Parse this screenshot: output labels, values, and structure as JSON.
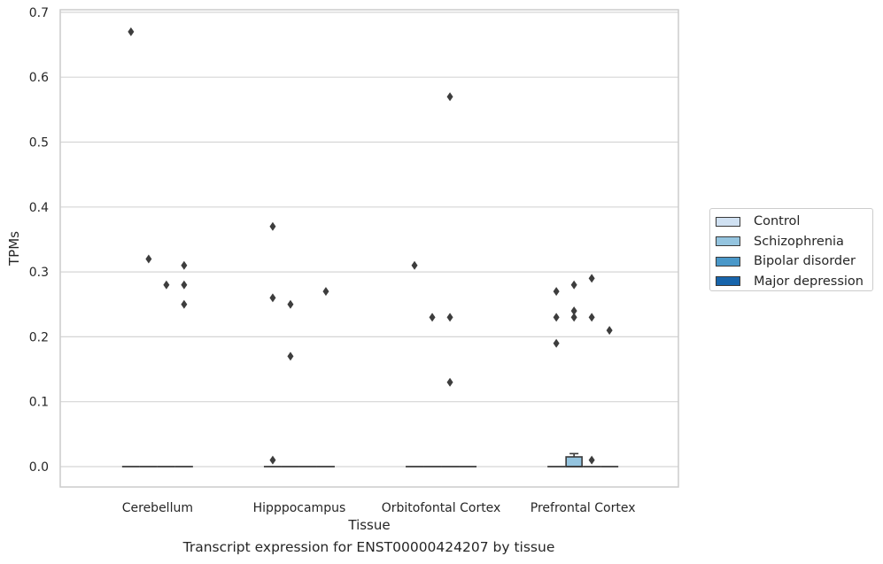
{
  "chart_data": {
    "type": "box",
    "title": "Transcript expression for ENST00000424207 by tissue",
    "xlabel": "Tissue",
    "ylabel": "TPMs",
    "ylim": [
      -0.032,
      0.705
    ],
    "yticks": [
      0.0,
      0.1,
      0.2,
      0.3,
      0.4,
      0.5,
      0.6,
      0.7
    ],
    "ytick_labels": [
      "0.0",
      "0.1",
      "0.2",
      "0.3",
      "0.4",
      "0.5",
      "0.6",
      "0.7"
    ],
    "grid": true,
    "legend_position": "right",
    "categories": [
      "Cerebellum",
      "Hipppocampus",
      "Orbitofontal Cortex",
      "Prefrontal Cortex"
    ],
    "series": [
      {
        "name": "Control",
        "color": "#d0e1f2"
      },
      {
        "name": "Schizophrenia",
        "color": "#94c4df"
      },
      {
        "name": "Bipolar disorder",
        "color": "#4a98c9"
      },
      {
        "name": "Major depression",
        "color": "#1764ab"
      }
    ],
    "boxes": [
      {
        "category": "Cerebellum",
        "series": "Control",
        "q1": 0,
        "median": 0,
        "q3": 0,
        "whisker_low": 0,
        "whisker_high": 0,
        "outliers": [
          0.67
        ]
      },
      {
        "category": "Cerebellum",
        "series": "Schizophrenia",
        "q1": 0,
        "median": 0,
        "q3": 0,
        "whisker_low": 0,
        "whisker_high": 0,
        "outliers": [
          0.32
        ]
      },
      {
        "category": "Cerebellum",
        "series": "Bipolar disorder",
        "q1": 0,
        "median": 0,
        "q3": 0,
        "whisker_low": 0,
        "whisker_high": 0,
        "outliers": [
          0.28
        ]
      },
      {
        "category": "Cerebellum",
        "series": "Major depression",
        "q1": 0,
        "median": 0,
        "q3": 0,
        "whisker_low": 0,
        "whisker_high": 0,
        "outliers": [
          0.31,
          0.28,
          0.25
        ]
      },
      {
        "category": "Hipppocampus",
        "series": "Control",
        "q1": 0,
        "median": 0,
        "q3": 0,
        "whisker_low": 0,
        "whisker_high": 0,
        "outliers": [
          0.37,
          0.26,
          0.01
        ]
      },
      {
        "category": "Hipppocampus",
        "series": "Schizophrenia",
        "q1": 0,
        "median": 0,
        "q3": 0,
        "whisker_low": 0,
        "whisker_high": 0,
        "outliers": [
          0.25,
          0.17
        ]
      },
      {
        "category": "Hipppocampus",
        "series": "Bipolar disorder",
        "q1": 0,
        "median": 0,
        "q3": 0,
        "whisker_low": 0,
        "whisker_high": 0,
        "outliers": []
      },
      {
        "category": "Hipppocampus",
        "series": "Major depression",
        "q1": 0,
        "median": 0,
        "q3": 0,
        "whisker_low": 0,
        "whisker_high": 0,
        "outliers": [
          0.27
        ]
      },
      {
        "category": "Orbitofontal Cortex",
        "series": "Control",
        "q1": 0,
        "median": 0,
        "q3": 0,
        "whisker_low": 0,
        "whisker_high": 0,
        "outliers": [
          0.31
        ]
      },
      {
        "category": "Orbitofontal Cortex",
        "series": "Schizophrenia",
        "q1": 0,
        "median": 0,
        "q3": 0,
        "whisker_low": 0,
        "whisker_high": 0,
        "outliers": [
          0.23
        ]
      },
      {
        "category": "Orbitofontal Cortex",
        "series": "Bipolar disorder",
        "q1": 0,
        "median": 0,
        "q3": 0,
        "whisker_low": 0,
        "whisker_high": 0,
        "outliers": [
          0.57,
          0.23,
          0.13
        ]
      },
      {
        "category": "Orbitofontal Cortex",
        "series": "Major depression",
        "q1": 0,
        "median": 0,
        "q3": 0,
        "whisker_low": 0,
        "whisker_high": 0,
        "outliers": []
      },
      {
        "category": "Prefrontal Cortex",
        "series": "Control",
        "q1": 0,
        "median": 0,
        "q3": 0,
        "whisker_low": 0,
        "whisker_high": 0,
        "outliers": [
          0.27,
          0.23,
          0.19
        ]
      },
      {
        "category": "Prefrontal Cortex",
        "series": "Schizophrenia",
        "q1": 0,
        "median": 0,
        "q3": 0.015,
        "whisker_low": 0,
        "whisker_high": 0.02,
        "outliers": [
          0.28,
          0.24,
          0.23
        ]
      },
      {
        "category": "Prefrontal Cortex",
        "series": "Bipolar disorder",
        "q1": 0,
        "median": 0,
        "q3": 0,
        "whisker_low": 0,
        "whisker_high": 0,
        "outliers": [
          0.29,
          0.23,
          0.01
        ]
      },
      {
        "category": "Prefrontal Cortex",
        "series": "Major depression",
        "q1": 0,
        "median": 0,
        "q3": 0,
        "whisker_low": 0,
        "whisker_high": 0,
        "outliers": [
          0.21
        ]
      }
    ]
  }
}
